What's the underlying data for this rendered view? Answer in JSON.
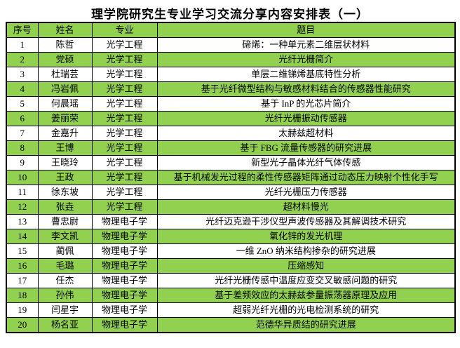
{
  "page": {
    "title": "理学院研究生专业学习交流分享内容安排表（一）"
  },
  "table": {
    "headers": [
      "序号",
      "姓名",
      "专业",
      "题目"
    ],
    "colors": {
      "row_green": "#92d050",
      "border": "#000000",
      "text": "#000000",
      "background": "#ffffff"
    },
    "rows": [
      {
        "num": "1",
        "name": "陈哲",
        "major": "光学工程",
        "topic": "碲烯：一种单元素二维层状材料"
      },
      {
        "num": "2",
        "name": "党硕",
        "major": "光学工程",
        "topic": "光纤光栅简介"
      },
      {
        "num": "3",
        "name": "杜瑞芸",
        "major": "光学工程",
        "topic": "单层二维锑烯基底特性分析"
      },
      {
        "num": "4",
        "name": "冯岩佩",
        "major": "光学工程",
        "topic": "基于光纤微型结构与敏感材料结合的传感器性能研究"
      },
      {
        "num": "5",
        "name": "何晨瑶",
        "major": "光学工程",
        "topic": "基于 InP 的光芯片简介"
      },
      {
        "num": "6",
        "name": "姜丽荣",
        "major": "光学工程",
        "topic": "光纤光栅振动传感器"
      },
      {
        "num": "7",
        "name": "金嘉升",
        "major": "光学工程",
        "topic": "太赫兹超材料"
      },
      {
        "num": "8",
        "name": "王博",
        "major": "光学工程",
        "topic": "基于 FBG 流量传感器的研究进展"
      },
      {
        "num": "9",
        "name": "王晓玲",
        "major": "光学工程",
        "topic": "新型光子晶体光纤气体传感"
      },
      {
        "num": "10",
        "name": "王政",
        "major": "光学工程",
        "topic": "基于机械发光过程的柔性传感器矩阵通过动态压力映射个性化手写"
      },
      {
        "num": "11",
        "name": "徐东坡",
        "major": "光学工程",
        "topic": "光纤光栅压力传感器"
      },
      {
        "num": "12",
        "name": "张垚",
        "major": "光学工程",
        "topic": "超材料慢光"
      },
      {
        "num": "13",
        "name": "曹忠尉",
        "major": "物理电子学",
        "topic": "光纤迈克逊干涉仪型声波传感器及其解调技术研究"
      },
      {
        "num": "14",
        "name": "李文凯",
        "major": "物理电子学",
        "topic": "氧化锌的发光机理"
      },
      {
        "num": "15",
        "name": "蔺佩",
        "major": "物理电子学",
        "topic": "一维 ZnO 纳米结构掺杂的研究进展"
      },
      {
        "num": "16",
        "name": "毛璐",
        "major": "物理电子学",
        "topic": "压缩感知"
      },
      {
        "num": "17",
        "name": "任杰",
        "major": "物理电子学",
        "topic": "光纤光栅传感中温度应变交叉敏感问题的研究"
      },
      {
        "num": "18",
        "name": "孙伟",
        "major": "物理电子学",
        "topic": "基于差频效应的太赫兹参量振荡器原理及应用"
      },
      {
        "num": "19",
        "name": "闫星宇",
        "major": "物理电子学",
        "topic": "超弱光纤光栅的光电检测系统的研究"
      },
      {
        "num": "20",
        "name": "杨名亚",
        "major": "物理电子学",
        "topic": "范德华异质结的研究进展"
      }
    ]
  }
}
